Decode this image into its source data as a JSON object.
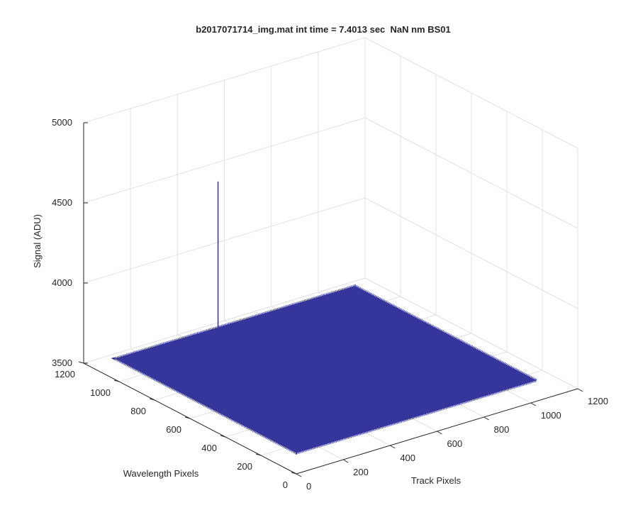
{
  "chart_data": {
    "type": "surface3d",
    "title": "b2017071714_img.mat int time = 7.4013 sec  NaN nm BS01",
    "xlabel": "Track Pixels",
    "ylabel": "Wavelength Pixels",
    "zlabel": "Signal (ADU)",
    "xlim": [
      0,
      1200
    ],
    "ylim": [
      0,
      1200
    ],
    "zlim": [
      3500,
      5000
    ],
    "xticks": [
      0,
      200,
      400,
      600,
      800,
      1000,
      1200
    ],
    "yticks": [
      0,
      200,
      400,
      600,
      800,
      1000,
      1200
    ],
    "zticks": [
      3500,
      4000,
      4500,
      5000
    ],
    "grid": true,
    "surface": {
      "x_range": [
        0,
        1024
      ],
      "y_range": [
        0,
        1024
      ],
      "level": 3630,
      "color": "#35359c"
    },
    "spike": {
      "x": 440,
      "y": 1024,
      "z": 4540,
      "color": "#2a2ad0"
    }
  }
}
